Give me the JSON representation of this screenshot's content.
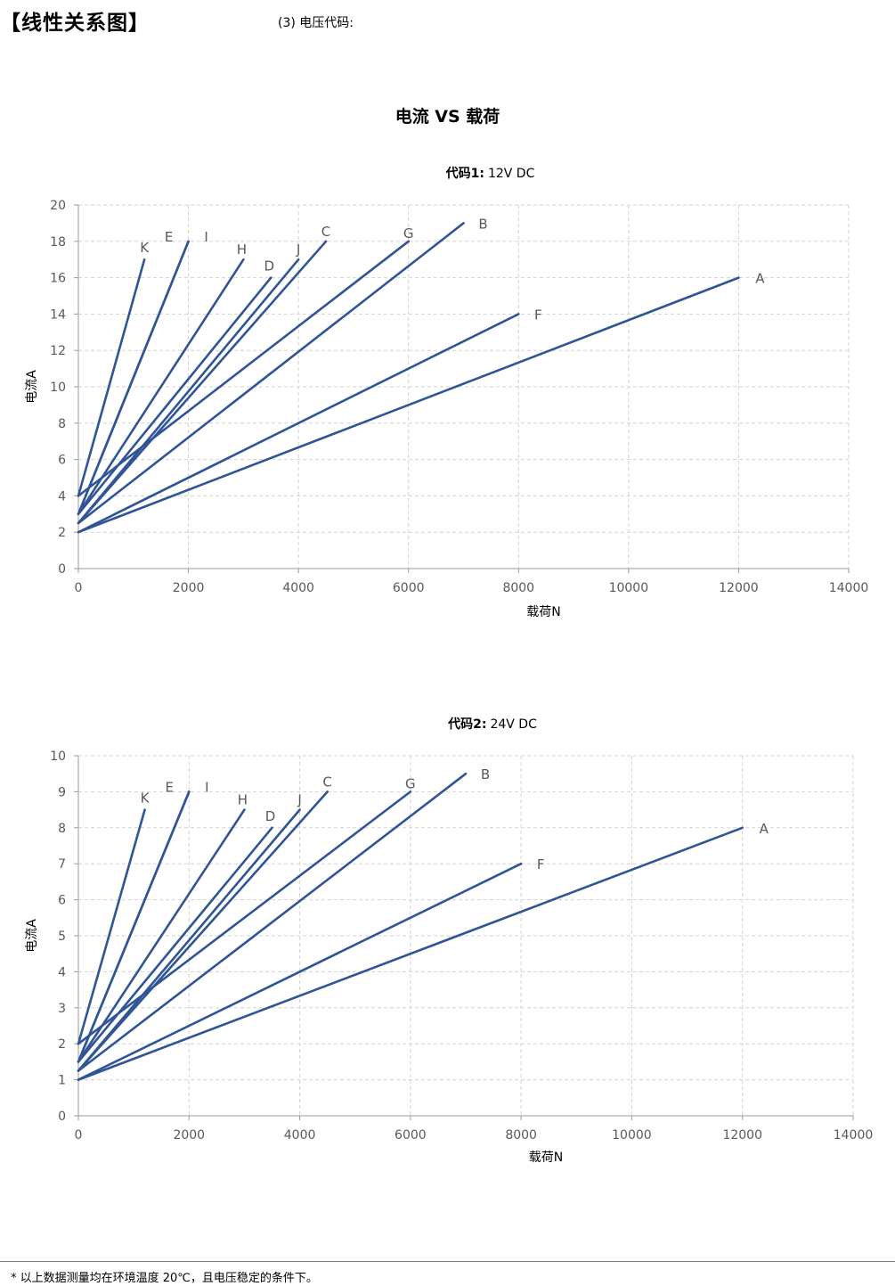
{
  "header": {
    "section_title": "【线性关系图】",
    "subsection": "(3) 电压代码:"
  },
  "main_title": "电流 VS 载荷",
  "footnote": "* 以上数据测量均在环境温度 20℃，且电压稳定的条件下。",
  "colors": {
    "line": "#2f5597",
    "grid": "#d3d3d3",
    "axis": "#9a9a9a",
    "text": "#595959"
  },
  "chart_data": [
    {
      "type": "line",
      "title_bold": "代码1:",
      "title_rest": "12V DC",
      "xlabel": "载荷N",
      "ylabel": "电流A",
      "xlim": [
        0,
        14000
      ],
      "ylim": [
        0,
        20
      ],
      "xticks": [
        0,
        2000,
        4000,
        6000,
        8000,
        10000,
        12000,
        14000
      ],
      "yticks": [
        0,
        2,
        4,
        6,
        8,
        10,
        12,
        14,
        16,
        18,
        20
      ],
      "grid": true,
      "series": [
        {
          "name": "A",
          "x": [
            0,
            12000
          ],
          "y": [
            2,
            16
          ]
        },
        {
          "name": "B",
          "x": [
            0,
            7000
          ],
          "y": [
            2.5,
            19
          ]
        },
        {
          "name": "C",
          "x": [
            0,
            4500
          ],
          "y": [
            2.5,
            18
          ]
        },
        {
          "name": "D",
          "x": [
            0,
            3500
          ],
          "y": [
            3,
            16
          ]
        },
        {
          "name": "E",
          "x": [
            0,
            2000
          ],
          "y": [
            3,
            18
          ]
        },
        {
          "name": "F",
          "x": [
            0,
            8000
          ],
          "y": [
            2,
            14
          ]
        },
        {
          "name": "G",
          "x": [
            0,
            6000
          ],
          "y": [
            4,
            18
          ]
        },
        {
          "name": "H",
          "x": [
            0,
            3000
          ],
          "y": [
            3,
            17
          ]
        },
        {
          "name": "I",
          "x": [
            0,
            2000
          ],
          "y": [
            3,
            18
          ]
        },
        {
          "name": "J",
          "x": [
            0,
            4000
          ],
          "y": [
            2.5,
            17
          ]
        },
        {
          "name": "K",
          "x": [
            0,
            1200
          ],
          "y": [
            4,
            17
          ]
        }
      ]
    },
    {
      "type": "line",
      "title_bold": "代码2:",
      "title_rest": "24V DC",
      "xlabel": "载荷N",
      "ylabel": "电流A",
      "xlim": [
        0,
        14000
      ],
      "ylim": [
        0,
        10
      ],
      "xticks": [
        0,
        2000,
        4000,
        6000,
        8000,
        10000,
        12000,
        14000
      ],
      "yticks": [
        0,
        1,
        2,
        3,
        4,
        5,
        6,
        7,
        8,
        9,
        10
      ],
      "grid": true,
      "series": [
        {
          "name": "A",
          "x": [
            0,
            12000
          ],
          "y": [
            1,
            8
          ]
        },
        {
          "name": "B",
          "x": [
            0,
            7000
          ],
          "y": [
            1.25,
            9.5
          ]
        },
        {
          "name": "C",
          "x": [
            0,
            4500
          ],
          "y": [
            1.25,
            9
          ]
        },
        {
          "name": "D",
          "x": [
            0,
            3500
          ],
          "y": [
            1.5,
            8
          ]
        },
        {
          "name": "E",
          "x": [
            0,
            2000
          ],
          "y": [
            1.5,
            9
          ]
        },
        {
          "name": "F",
          "x": [
            0,
            8000
          ],
          "y": [
            1,
            7
          ]
        },
        {
          "name": "G",
          "x": [
            0,
            6000
          ],
          "y": [
            2,
            9
          ]
        },
        {
          "name": "H",
          "x": [
            0,
            3000
          ],
          "y": [
            1.5,
            8.5
          ]
        },
        {
          "name": "I",
          "x": [
            0,
            2000
          ],
          "y": [
            1.5,
            9
          ]
        },
        {
          "name": "J",
          "x": [
            0,
            4000
          ],
          "y": [
            1.25,
            8.5
          ]
        },
        {
          "name": "K",
          "x": [
            0,
            1200
          ],
          "y": [
            2,
            8.5
          ]
        }
      ]
    }
  ]
}
